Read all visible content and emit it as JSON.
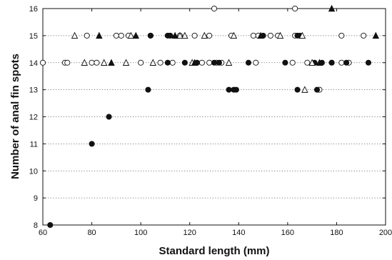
{
  "chart_data": {
    "type": "scatter",
    "xlabel": "Standard length (mm)",
    "ylabel": "Number of anal fin spots",
    "xlim": [
      60,
      200
    ],
    "ylim": [
      8,
      16
    ],
    "x_ticks": [
      60,
      80,
      100,
      120,
      140,
      160,
      180,
      200
    ],
    "y_ticks": [
      8,
      9,
      10,
      11,
      12,
      13,
      14,
      15,
      16
    ],
    "grid": "horizontal dotted",
    "legend": "none",
    "marker_styles": [
      "open-circle",
      "filled-circle",
      "open-triangle",
      "filled-triangle"
    ],
    "series": [
      {
        "marker": "open-circle",
        "points": [
          [
            130,
            16
          ],
          [
            163,
            16
          ],
          [
            78,
            15
          ],
          [
            90,
            15
          ],
          [
            92,
            15
          ],
          [
            95,
            15
          ],
          [
            104,
            15
          ],
          [
            112,
            15
          ],
          [
            116,
            15
          ],
          [
            122,
            15
          ],
          [
            128,
            15
          ],
          [
            137,
            15
          ],
          [
            146,
            15
          ],
          [
            148,
            15
          ],
          [
            153,
            15
          ],
          [
            156,
            15
          ],
          [
            163,
            15
          ],
          [
            182,
            15
          ],
          [
            191,
            15
          ],
          [
            60,
            14
          ],
          [
            69,
            14
          ],
          [
            70,
            14
          ],
          [
            80,
            14
          ],
          [
            82,
            14
          ],
          [
            100,
            14
          ],
          [
            108,
            14
          ],
          [
            113,
            14
          ],
          [
            125,
            14
          ],
          [
            128,
            14
          ],
          [
            131,
            14
          ],
          [
            133,
            14
          ],
          [
            147,
            14
          ],
          [
            162,
            14
          ],
          [
            168,
            14
          ],
          [
            178,
            14
          ],
          [
            182,
            14
          ],
          [
            185,
            14
          ],
          [
            173,
            13
          ]
        ]
      },
      {
        "marker": "filled-circle",
        "points": [
          [
            104,
            15
          ],
          [
            111,
            15
          ],
          [
            112,
            15
          ],
          [
            150,
            15
          ],
          [
            164,
            15
          ],
          [
            165,
            15
          ],
          [
            111,
            14
          ],
          [
            118,
            14
          ],
          [
            123,
            14
          ],
          [
            130,
            14
          ],
          [
            132,
            14
          ],
          [
            144,
            14
          ],
          [
            159,
            14
          ],
          [
            171,
            14
          ],
          [
            174,
            14
          ],
          [
            178,
            14
          ],
          [
            184,
            14
          ],
          [
            193,
            14
          ],
          [
            103,
            13
          ],
          [
            136,
            13
          ],
          [
            138,
            13
          ],
          [
            139,
            13
          ],
          [
            164,
            13
          ],
          [
            172,
            13
          ],
          [
            87,
            12
          ],
          [
            80,
            11
          ],
          [
            63,
            8
          ]
        ]
      },
      {
        "marker": "open-triangle",
        "points": [
          [
            73,
            15
          ],
          [
            96,
            15
          ],
          [
            116,
            15
          ],
          [
            118,
            15
          ],
          [
            126,
            15
          ],
          [
            138,
            15
          ],
          [
            157,
            15
          ],
          [
            166,
            15
          ],
          [
            77,
            14
          ],
          [
            85,
            14
          ],
          [
            94,
            14
          ],
          [
            105,
            14
          ],
          [
            121,
            14
          ],
          [
            136,
            14
          ],
          [
            170,
            14
          ],
          [
            167,
            13
          ]
        ]
      },
      {
        "marker": "filled-triangle",
        "points": [
          [
            178,
            16
          ],
          [
            83,
            15
          ],
          [
            98,
            15
          ],
          [
            114,
            15
          ],
          [
            149,
            15
          ],
          [
            196,
            15
          ],
          [
            88,
            14
          ],
          [
            122,
            14
          ],
          [
            173,
            14
          ]
        ]
      }
    ]
  }
}
